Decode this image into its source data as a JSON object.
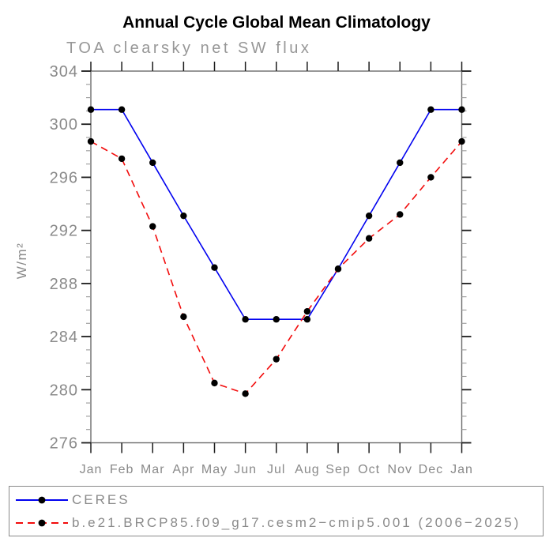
{
  "title": "Annual Cycle Global Mean Climatology",
  "subtitle": "TOA clearsky net SW flux",
  "chart_data": {
    "type": "line",
    "x_categories": [
      "Jan",
      "Feb",
      "Mar",
      "Apr",
      "May",
      "Jun",
      "Jul",
      "Aug",
      "Sep",
      "Oct",
      "Nov",
      "Dec",
      "Jan"
    ],
    "xlabel": "",
    "ylabel": "W/m²",
    "ylim": [
      276,
      304
    ],
    "ytick_major": [
      276,
      280,
      284,
      288,
      292,
      296,
      300,
      304
    ],
    "ytick_minor_step": 1,
    "grid": false,
    "legend_position": "bottom-left-box",
    "series": [
      {
        "name": "CERES",
        "color": "#0202f0",
        "line_style": "solid",
        "marker": "filled-circle",
        "marker_color": "#000000",
        "values": [
          301.1,
          301.1,
          297.1,
          293.1,
          289.2,
          285.3,
          285.3,
          285.3,
          289.1,
          293.1,
          297.1,
          301.1,
          301.1
        ]
      },
      {
        "name": "b.e21.BRCP85.f09_g17.cesm2−cmip5.001 (2006−2025)",
        "color": "#f20b0b",
        "line_style": "dashed",
        "marker": "filled-circle",
        "marker_color": "#000000",
        "values": [
          298.7,
          297.4,
          292.3,
          285.5,
          280.5,
          279.7,
          282.3,
          285.9,
          289.1,
          291.4,
          293.2,
          296.0,
          298.7
        ]
      }
    ],
    "style": {
      "axis_color": "#6b6b6b",
      "major_tick_color": "#1c1c1c",
      "minor_tick_color": "#9a9a9a",
      "label_color": "#8a8a8a",
      "title_color": "#000000",
      "subtitle_color": "#979797"
    }
  }
}
